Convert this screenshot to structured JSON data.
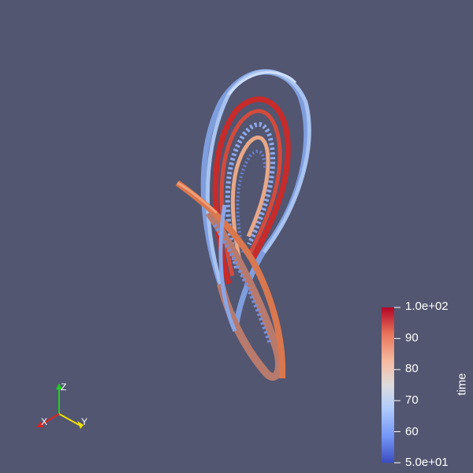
{
  "colorbar": {
    "title": "time",
    "range": [
      50,
      100
    ],
    "ticks": [
      {
        "label": "1.0e+02",
        "value": 100
      },
      {
        "label": "90",
        "value": 90
      },
      {
        "label": "80",
        "value": 80
      },
      {
        "label": "70",
        "value": 70
      },
      {
        "label": "60",
        "value": 60
      },
      {
        "label": "5.0e+01",
        "value": 50
      }
    ],
    "colors": [
      "#3b4cc0",
      "#7396f5",
      "#b0cbfc",
      "#dddddd",
      "#f6b89c",
      "#e7745b",
      "#b40426"
    ]
  },
  "orientation_axes": {
    "x_label": "X",
    "y_label": "Y",
    "z_label": "Z",
    "x_color": "#e02020",
    "y_color": "#f0e000",
    "z_color": "#20d020"
  },
  "background_color": "#525670"
}
